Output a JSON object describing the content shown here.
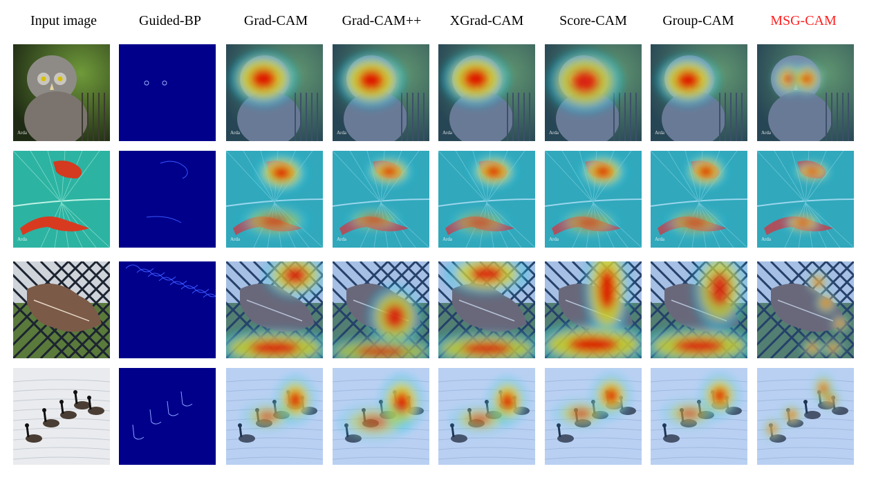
{
  "figure": {
    "columns": [
      {
        "label": "Input image",
        "accent": false
      },
      {
        "label": "Guided-BP",
        "accent": false
      },
      {
        "label": "Grad-CAM",
        "accent": false
      },
      {
        "label": "Grad-CAM++",
        "accent": false
      },
      {
        "label": "XGrad-CAM",
        "accent": false
      },
      {
        "label": "Score-CAM",
        "accent": false
      },
      {
        "label": "Group-CAM",
        "accent": false
      },
      {
        "label": "MSG-CAM",
        "accent": true
      }
    ],
    "rows": [
      {
        "subject": "owl",
        "watermark": "Arda"
      },
      {
        "subject": "newts-on-leaf",
        "watermark": "Arda"
      },
      {
        "subject": "leaf-on-chain-link-fence",
        "watermark": ""
      },
      {
        "subject": "geese-on-water",
        "watermark": ""
      }
    ],
    "colors": {
      "accent_title": "#ff1f1f",
      "guided_bp_background": "#00008b",
      "heat_hot": "#e00000",
      "heat_warm": "#ffd800",
      "heat_cool": "#19c8e6"
    }
  }
}
